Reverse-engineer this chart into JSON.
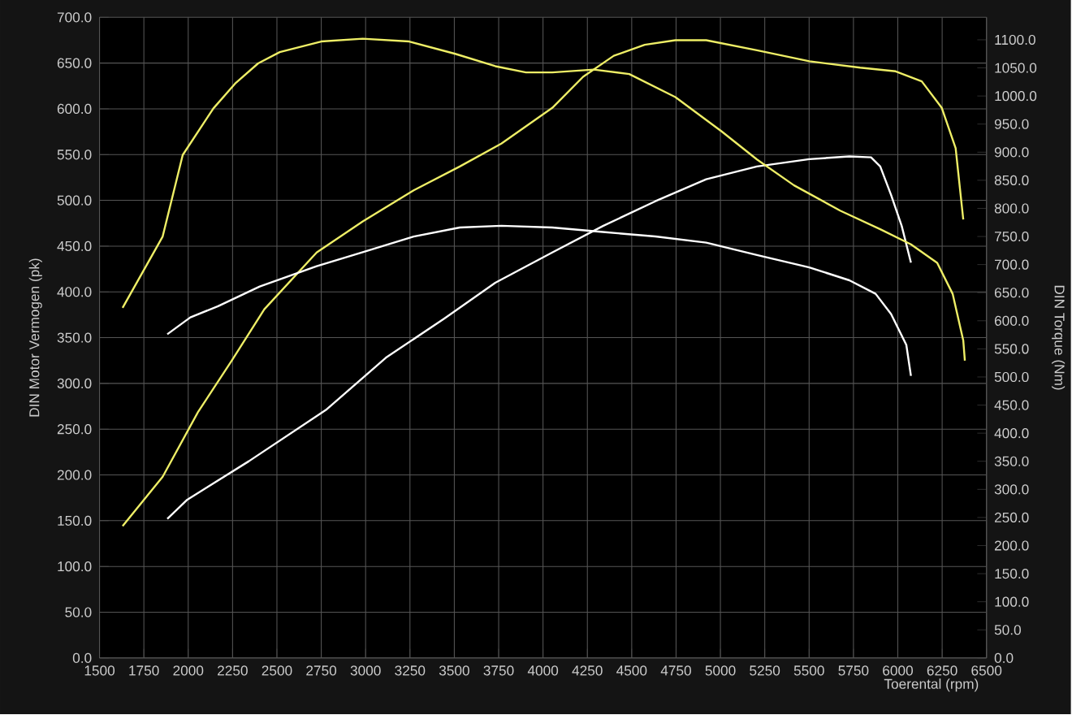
{
  "chart_data": {
    "type": "line",
    "xlabel": "Toerental (rpm)",
    "ylabel": "DIN Motor Vermogen (pk)",
    "y2label": "DIN Torque (Nm)",
    "xlim": [
      1500,
      6500
    ],
    "xticks": [
      1500,
      1750,
      2000,
      2250,
      2500,
      2750,
      3000,
      3250,
      3500,
      3750,
      4000,
      4250,
      4500,
      4750,
      5000,
      5250,
      5500,
      5750,
      6000,
      6250,
      6500
    ],
    "ylim": [
      0,
      700
    ],
    "yticks": [
      {
        "value": 0,
        "label": "0.0"
      },
      {
        "value": 50,
        "label": "50.0"
      },
      {
        "value": 100,
        "label": "100.0"
      },
      {
        "value": 150,
        "label": "150.0"
      },
      {
        "value": 200,
        "label": "200.0"
      },
      {
        "value": 250,
        "label": "250.0"
      },
      {
        "value": 300,
        "label": "300.0"
      },
      {
        "value": 350,
        "label": "350.0"
      },
      {
        "value": 400,
        "label": "400.0"
      },
      {
        "value": 450,
        "label": "450.0"
      },
      {
        "value": 500,
        "label": "500.0"
      },
      {
        "value": 550,
        "label": "550.0"
      },
      {
        "value": 600,
        "label": "600.0"
      },
      {
        "value": 650,
        "label": "650.0"
      },
      {
        "value": 700,
        "label": "700.0"
      }
    ],
    "y2lim": [
      0,
      1140
    ],
    "y2ticks": [
      {
        "value": 0,
        "label": "0.0"
      },
      {
        "value": 50,
        "label": "50.0"
      },
      {
        "value": 100,
        "label": "100.0"
      },
      {
        "value": 150,
        "label": "150.0"
      },
      {
        "value": 200,
        "label": "200.0"
      },
      {
        "value": 250,
        "label": "250.0"
      },
      {
        "value": 300,
        "label": "300.0"
      },
      {
        "value": 350,
        "label": "350.0"
      },
      {
        "value": 400,
        "label": "400.0"
      },
      {
        "value": 450,
        "label": "450.0"
      },
      {
        "value": 500,
        "label": "500.0"
      },
      {
        "value": 550,
        "label": "550.0"
      },
      {
        "value": 600,
        "label": "600.0"
      },
      {
        "value": 650,
        "label": "650.0"
      },
      {
        "value": 700,
        "label": "700.0"
      },
      {
        "value": 750,
        "label": "750.0"
      },
      {
        "value": 800,
        "label": "800.0"
      },
      {
        "value": 850,
        "label": "850.0"
      },
      {
        "value": 900,
        "label": "900.0"
      },
      {
        "value": 950,
        "label": "950.0"
      },
      {
        "value": 1000,
        "label": "1000.0"
      },
      {
        "value": 1050,
        "label": "1050.0"
      },
      {
        "value": 1100,
        "label": "1100.0"
      }
    ],
    "grid": true,
    "series": [
      {
        "color": "#eeee66",
        "x": [
          1630,
          1856,
          2056,
          2246,
          2429,
          2724,
          2984,
          3271,
          3531,
          3765,
          4052,
          4226,
          4399,
          4573,
          4746,
          4920,
          5206,
          5501,
          5788,
          5988,
          6135,
          6248,
          6326,
          6369
        ],
        "values": [
          144,
          198,
          269,
          325,
          381,
          443,
          477,
          511,
          537,
          562,
          601,
          635,
          658,
          670,
          675,
          675,
          664,
          652,
          645,
          641,
          630,
          601,
          557,
          479
        ]
      },
      {
        "color": "#ffffff",
        "x": [
          1882,
          1995,
          2342,
          2776,
          3114,
          3444,
          3731,
          4052,
          4338,
          4633,
          4920,
          5206,
          5501,
          5727,
          5849,
          5901,
          5962,
          6022,
          6074
        ],
        "values": [
          152,
          173,
          215,
          271,
          328,
          371,
          410,
          443,
          472,
          499,
          523,
          537,
          545,
          548,
          547,
          537,
          506,
          472,
          432
        ]
      },
      {
        "color": "#eeee66",
        "axis": "y2",
        "x": [
          1630,
          1856,
          1969,
          2142,
          2264,
          2394,
          2516,
          2750,
          2984,
          3245,
          3505,
          3731,
          3904,
          4052,
          4286,
          4486,
          4746,
          5007,
          5206,
          5415,
          5675,
          5901,
          6074,
          6222,
          6309,
          6369,
          6378
        ],
        "values": [
          623,
          750,
          895,
          978,
          1022,
          1058,
          1078,
          1097,
          1102,
          1097,
          1075,
          1053,
          1042,
          1042,
          1047,
          1039,
          998,
          937,
          887,
          841,
          796,
          763,
          736,
          703,
          648,
          565,
          529
        ]
      },
      {
        "color": "#ffffff",
        "axis": "y2",
        "x": [
          1882,
          2012,
          2168,
          2403,
          2724,
          2984,
          3271,
          3531,
          3765,
          4052,
          4338,
          4633,
          4920,
          5206,
          5501,
          5727,
          5875,
          5962,
          6048,
          6074
        ],
        "values": [
          576,
          606,
          626,
          661,
          697,
          722,
          750,
          766,
          769,
          766,
          758,
          750,
          739,
          717,
          695,
          672,
          648,
          612,
          557,
          502
        ]
      }
    ]
  }
}
